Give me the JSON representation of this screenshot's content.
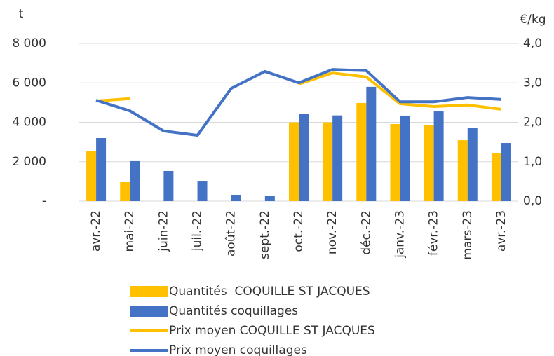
{
  "chart_data": {
    "type": "combo",
    "ylabel": "t",
    "y2label": "€/kg",
    "categories": [
      "avr.-22",
      "mai-22",
      "juin-22",
      "juil.-22",
      "août-22",
      "sept.-22",
      "oct.-22",
      "nov.-22",
      "déc.-22",
      "janv.-23",
      "févr.-23",
      "mars-23",
      "avr.-23"
    ],
    "series": [
      {
        "name": "Quantités  COQUILLE ST JACQUES",
        "type": "bar",
        "color": "#FFC000",
        "values": [
          2560,
          960,
          null,
          null,
          null,
          null,
          4000,
          4000,
          4980,
          3910,
          3840,
          3090,
          2420
        ]
      },
      {
        "name": "Quantités coquillages",
        "type": "bar",
        "color": "#4472C4",
        "values": [
          3200,
          2030,
          1530,
          1030,
          320,
          270,
          4410,
          4350,
          5800,
          4340,
          4550,
          3730,
          2950
        ]
      },
      {
        "name": "Prix moyen COQUILLE ST JACQUES",
        "type": "line",
        "axis": "y2",
        "color": "#FFC000",
        "values": [
          2.54,
          2.6,
          null,
          null,
          null,
          null,
          2.97,
          3.25,
          3.15,
          2.47,
          2.4,
          2.44,
          2.33
        ]
      },
      {
        "name": "Prix moyen coquillages",
        "type": "line",
        "axis": "y2",
        "color": "#4472C4",
        "values": [
          2.56,
          2.29,
          1.78,
          1.67,
          2.86,
          3.29,
          3.0,
          3.34,
          3.31,
          2.52,
          2.52,
          2.63,
          2.58
        ]
      }
    ],
    "ylim": [
      0,
      8000
    ],
    "yticks": [
      {
        "value": 0,
        "label": "-"
      },
      {
        "value": 2000,
        "label": "2 000"
      },
      {
        "value": 4000,
        "label": "4 000"
      },
      {
        "value": 6000,
        "label": "6 000"
      },
      {
        "value": 8000,
        "label": "8 000"
      }
    ],
    "y2lim": [
      0,
      4
    ],
    "y2ticks": [
      {
        "value": 0,
        "label": "0,0"
      },
      {
        "value": 1,
        "label": "1,0"
      },
      {
        "value": 2,
        "label": "2,0"
      },
      {
        "value": 3,
        "label": "3,0"
      },
      {
        "value": 4,
        "label": "4,0"
      }
    ],
    "grid": true,
    "legend": "bottom"
  }
}
